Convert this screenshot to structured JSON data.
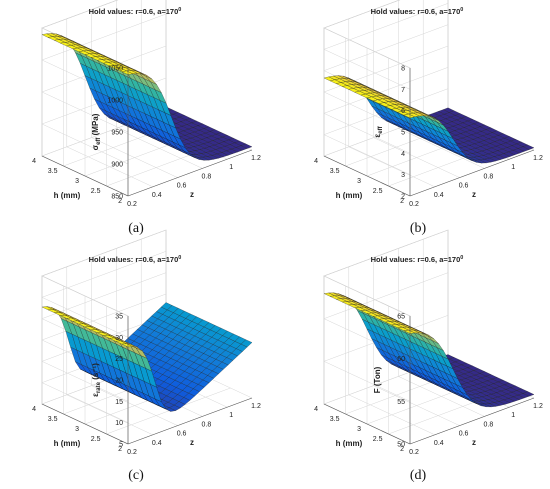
{
  "chart_data": [
    {
      "type": "surface",
      "title": "Hold values: r=0.6,  a=170",
      "title_superscript": "0",
      "xlabel": "z",
      "ylabel": "h (mm)",
      "zlabel": "σ_eff (MPa)",
      "z_symbol": "σ",
      "z_subscript": "eff",
      "z_unit": "(MPa)",
      "xlim": [
        0.2,
        1.2
      ],
      "ylim": [
        2,
        4
      ],
      "zlim": [
        850,
        1050
      ],
      "x_ticks": [
        "0.2",
        "0.4",
        "0.6",
        "0.8",
        "1",
        "1.2"
      ],
      "y_ticks": [
        "2",
        "2.5",
        "3",
        "3.5",
        "4"
      ],
      "z_ticks": [
        "850",
        "900",
        "950",
        "1000",
        "1050"
      ],
      "surface": {
        "shape": "sigmoid",
        "high": 1042,
        "low": 855,
        "center_z": 0.55,
        "width_z": 0.08,
        "h_slope": 0
      },
      "caption": "(a)"
    },
    {
      "type": "surface",
      "title": "Hold values: r=0.6,  a=170",
      "title_superscript": "0",
      "xlabel": "z",
      "ylabel": "h (mm)",
      "zlabel": "ε_eff",
      "z_symbol": "ε",
      "z_subscript": "eff",
      "z_unit": "",
      "xlim": [
        0.2,
        1.2
      ],
      "ylim": [
        2,
        4
      ],
      "zlim": [
        2,
        8
      ],
      "x_ticks": [
        "0.2",
        "0.4",
        "0.6",
        "0.8",
        "1",
        "1.2"
      ],
      "y_ticks": [
        "2",
        "2.5",
        "3",
        "3.5",
        "4"
      ],
      "z_ticks": [
        "2",
        "3",
        "4",
        "5",
        "6",
        "7",
        "8"
      ],
      "surface": {
        "shape": "sigmoid",
        "high": 5.7,
        "low": 2.1,
        "center_z": 0.55,
        "width_z": 0.08,
        "h_slope": 0
      },
      "caption": "(b)"
    },
    {
      "type": "surface",
      "title": "Hold values: r=0.6,  a=170",
      "title_superscript": "0",
      "xlabel": "z",
      "ylabel": "h (mm)",
      "zlabel": "ε_rate (s⁻¹)",
      "z_symbol": "ε",
      "z_subscript": "rate",
      "z_unit": "(s⁻¹)",
      "xlim": [
        0.2,
        1.2
      ],
      "ylim": [
        2,
        4
      ],
      "zlim": [
        5,
        35
      ],
      "x_ticks": [
        "0.2",
        "0.4",
        "0.6",
        "0.8",
        "1",
        "1.2"
      ],
      "y_ticks": [
        "2",
        "2.5",
        "3",
        "3.5",
        "4"
      ],
      "z_ticks": [
        "5",
        "10",
        "15",
        "20",
        "25",
        "30",
        "35"
      ],
      "surface": {
        "shape": "valley",
        "high": 28,
        "low": 6,
        "rise_to": 18,
        "center_z": 0.42,
        "width_z": 0.05,
        "h_slope": 0
      },
      "caption": "(c)"
    },
    {
      "type": "surface",
      "title": "Hold values: r=0.6,  a=170",
      "title_superscript": "0",
      "xlabel": "z",
      "ylabel": "h (mm)",
      "zlabel": "F (Ton)",
      "z_symbol": "F",
      "z_subscript": "",
      "z_unit": "(Ton)",
      "xlim": [
        0.2,
        1.2
      ],
      "ylim": [
        2,
        4
      ],
      "zlim": [
        50,
        65
      ],
      "x_ticks": [
        "0.2",
        "0.4",
        "0.6",
        "0.8",
        "1",
        "1.2"
      ],
      "y_ticks": [
        "2",
        "2.5",
        "3",
        "3.5",
        "4"
      ],
      "z_ticks": [
        "50",
        "55",
        "60",
        "65"
      ],
      "surface": {
        "shape": "sigmoid",
        "high": 63.2,
        "low": 50.4,
        "center_z": 0.55,
        "width_z": 0.09,
        "h_slope": 0
      },
      "caption": "(d)"
    }
  ]
}
